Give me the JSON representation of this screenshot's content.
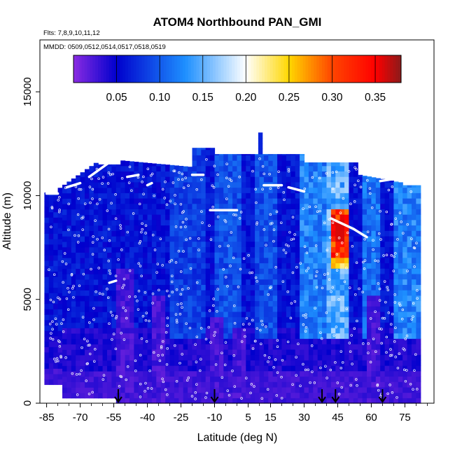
{
  "chart_data": {
    "type": "heatmap",
    "title": "ATOM4 Northbound PAN_GMI",
    "subtitle_flights": "Flts: 7,8,9,10,11,12",
    "subtitle_dates": "MMDD: 0509,0512,0514,0517,0518,0519",
    "xlabel": "Latitude (deg N)",
    "ylabel": "Altitude (m)",
    "xlim": [
      -88,
      88
    ],
    "ylim": [
      0,
      17500
    ],
    "x_ticks": [
      -85,
      -70,
      -55,
      -40,
      -25,
      -10,
      5,
      15,
      30,
      45,
      60,
      75
    ],
    "x_tick_labels": [
      "-85",
      "-70",
      "-55",
      "-40",
      "-25",
      "-10",
      "5",
      "15",
      "30",
      "45",
      "60",
      "75"
    ],
    "y_ticks": [
      0,
      5000,
      10000,
      15000
    ],
    "y_tick_labels": [
      "0",
      "5000",
      "10000",
      "15000"
    ],
    "colorbar": {
      "range": [
        0,
        0.38
      ],
      "ticks": [
        0.05,
        0.1,
        0.15,
        0.2,
        0.25,
        0.3,
        0.35
      ],
      "tick_labels": [
        "0.05",
        "0.10",
        "0.15",
        "0.20",
        "0.25",
        "0.30",
        "0.35"
      ],
      "colors": [
        "#8a2be2",
        "#0000cd",
        "#1e90ff",
        "#ffffff",
        "#ffd700",
        "#ff4500",
        "#ff0000",
        "#8b1a1a"
      ],
      "color_positions": [
        0,
        0.05,
        0.13,
        0.2,
        0.25,
        0.3,
        0.35,
        0.38
      ]
    },
    "arrow_latitudes": [
      -53,
      -10,
      38,
      44,
      65
    ],
    "colors": {
      "low": "#8a2be2",
      "mid_low": "#0000cd",
      "mid": "#1e90ff",
      "high": "#ff0000",
      "track": "#ffffff"
    }
  }
}
